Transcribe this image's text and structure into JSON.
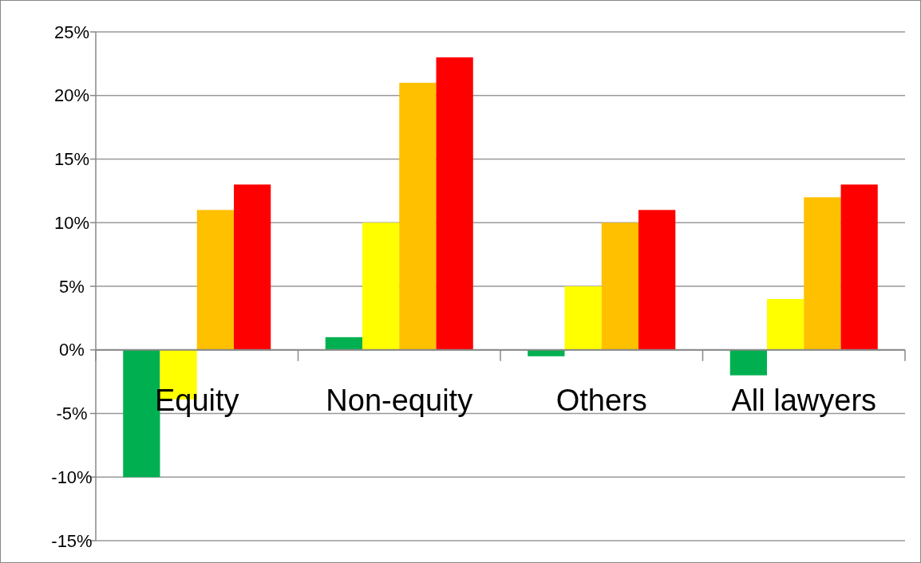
{
  "chart_data": {
    "type": "bar",
    "categories": [
      "Equity",
      "Non-equity",
      "Others",
      "All lawyers"
    ],
    "series": [
      {
        "color": "#00b050",
        "values": [
          -10,
          1,
          -0.5,
          -2
        ]
      },
      {
        "color": "#ffff00",
        "values": [
          -3.9,
          10,
          5,
          4
        ]
      },
      {
        "color": "#ffc000",
        "values": [
          11,
          21,
          10,
          12
        ]
      },
      {
        "color": "#ff0000",
        "values": [
          13,
          23,
          11,
          13
        ]
      }
    ],
    "ylim": [
      -15,
      25
    ],
    "yticks": [
      {
        "value": -15,
        "label": "-15%"
      },
      {
        "value": -10,
        "label": "-10%"
      },
      {
        "value": -5,
        "label": "-5%"
      },
      {
        "value": 0,
        "label": "0%"
      },
      {
        "value": 5,
        "label": "5%"
      },
      {
        "value": 10,
        "label": "10%"
      },
      {
        "value": 15,
        "label": "15%"
      },
      {
        "value": 20,
        "label": "20%"
      },
      {
        "value": 25,
        "label": "25%"
      }
    ],
    "grid": "y"
  }
}
